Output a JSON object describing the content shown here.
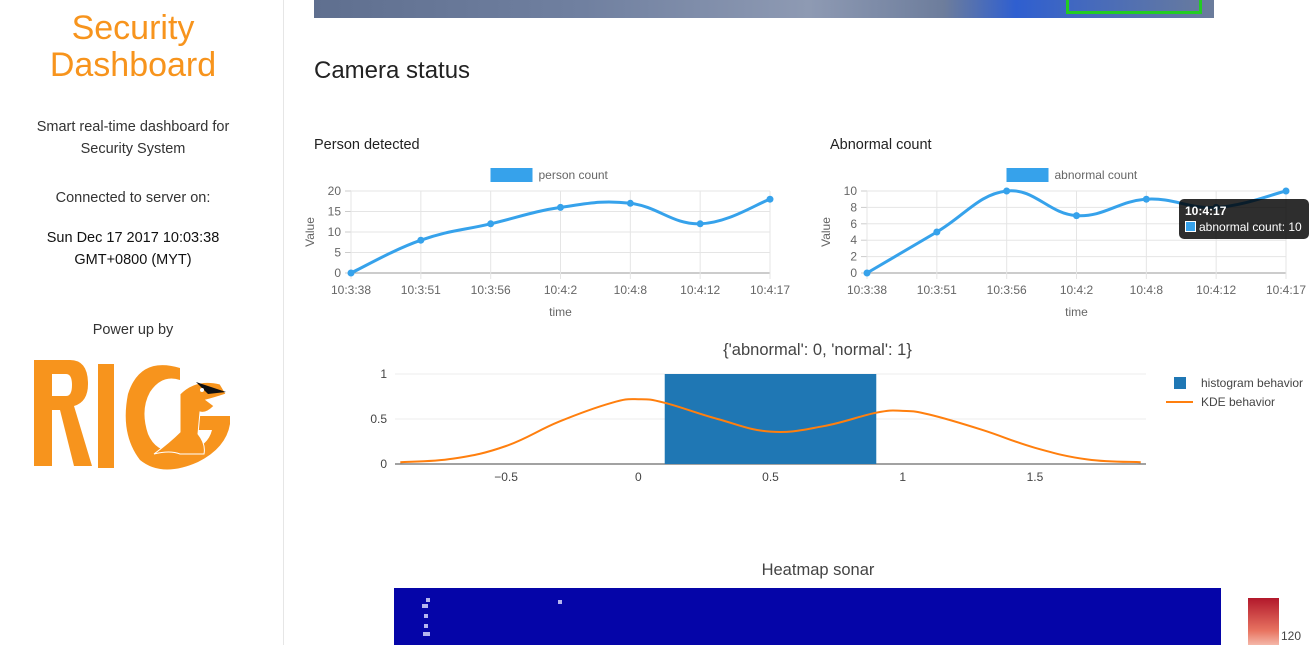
{
  "sidebar": {
    "title_line1": "Security",
    "title_line2": "Dashboard",
    "tagline_line1": "Smart real-time dashboard for",
    "tagline_line2": "Security System",
    "connected_label": "Connected to server on:",
    "connected_time_line1": "Sun Dec 17 2017 10:03:38",
    "connected_time_line2": "GMT+0800 (MYT)",
    "power_label": "Power up by",
    "logo_text": "RIG",
    "brand_color": "#f7941d"
  },
  "main": {
    "section_title": "Camera status",
    "person_chart_title": "Person detected",
    "abnormal_chart_title": "Abnormal count",
    "behavior_chart_title": "{'abnormal': 0, 'normal': 1}",
    "heatmap_title": "Heatmap sonar",
    "heatmap_colorbar_label": "120"
  },
  "tooltip": {
    "title": "10:4:17",
    "body": "abnormal count: 10"
  },
  "chart_data": [
    {
      "type": "line",
      "title": "Person detected",
      "xlabel": "time",
      "ylabel": "Value",
      "categories": [
        "10:3:38",
        "10:3:51",
        "10:3:56",
        "10:4:2",
        "10:4:8",
        "10:4:12",
        "10:4:17"
      ],
      "series": [
        {
          "name": "person count",
          "values": [
            0,
            8,
            12,
            16,
            17,
            12,
            18
          ],
          "color": "#36a2eb"
        }
      ],
      "yticks": [
        "0",
        "5",
        "10",
        "15",
        "20"
      ],
      "ylim": [
        0,
        20
      ],
      "grid": true,
      "legend": "top"
    },
    {
      "type": "line",
      "title": "Abnormal count",
      "xlabel": "time",
      "ylabel": "Value",
      "categories": [
        "10:3:38",
        "10:3:51",
        "10:3:56",
        "10:4:2",
        "10:4:8",
        "10:4:12",
        "10:4:17"
      ],
      "series": [
        {
          "name": "abnormal count",
          "values": [
            0,
            5,
            10,
            7,
            9,
            8,
            10
          ],
          "color": "#36a2eb"
        }
      ],
      "yticks": [
        "0",
        "2",
        "4",
        "6",
        "8",
        "10"
      ],
      "ylim": [
        0,
        10
      ],
      "grid": true,
      "legend": "top"
    },
    {
      "type": "bar",
      "title": "{'abnormal': 0, 'normal': 1}",
      "series": [
        {
          "name": "histogram behavior",
          "type": "bar",
          "x_range": [
            0.1,
            0.9
          ],
          "value": 1,
          "color": "#1f77b4"
        },
        {
          "name": "KDE behavior",
          "type": "line",
          "color": "#ff7f0e",
          "x": [
            -0.9,
            -0.7,
            -0.5,
            -0.3,
            -0.1,
            0,
            0.1,
            0.3,
            0.5,
            0.7,
            0.9,
            1.0,
            1.1,
            1.3,
            1.5,
            1.7,
            1.9
          ],
          "y": [
            0.02,
            0.06,
            0.2,
            0.47,
            0.68,
            0.72,
            0.68,
            0.5,
            0.36,
            0.42,
            0.57,
            0.59,
            0.55,
            0.38,
            0.18,
            0.05,
            0.02
          ]
        }
      ],
      "xticks": [
        "−0.5",
        "0",
        "0.5",
        "1",
        "1.5"
      ],
      "yticks": [
        "0",
        "0.5",
        "1"
      ],
      "xlim": [
        -0.92,
        1.92
      ],
      "ylim": [
        0,
        1
      ],
      "legend": "top-right"
    }
  ]
}
